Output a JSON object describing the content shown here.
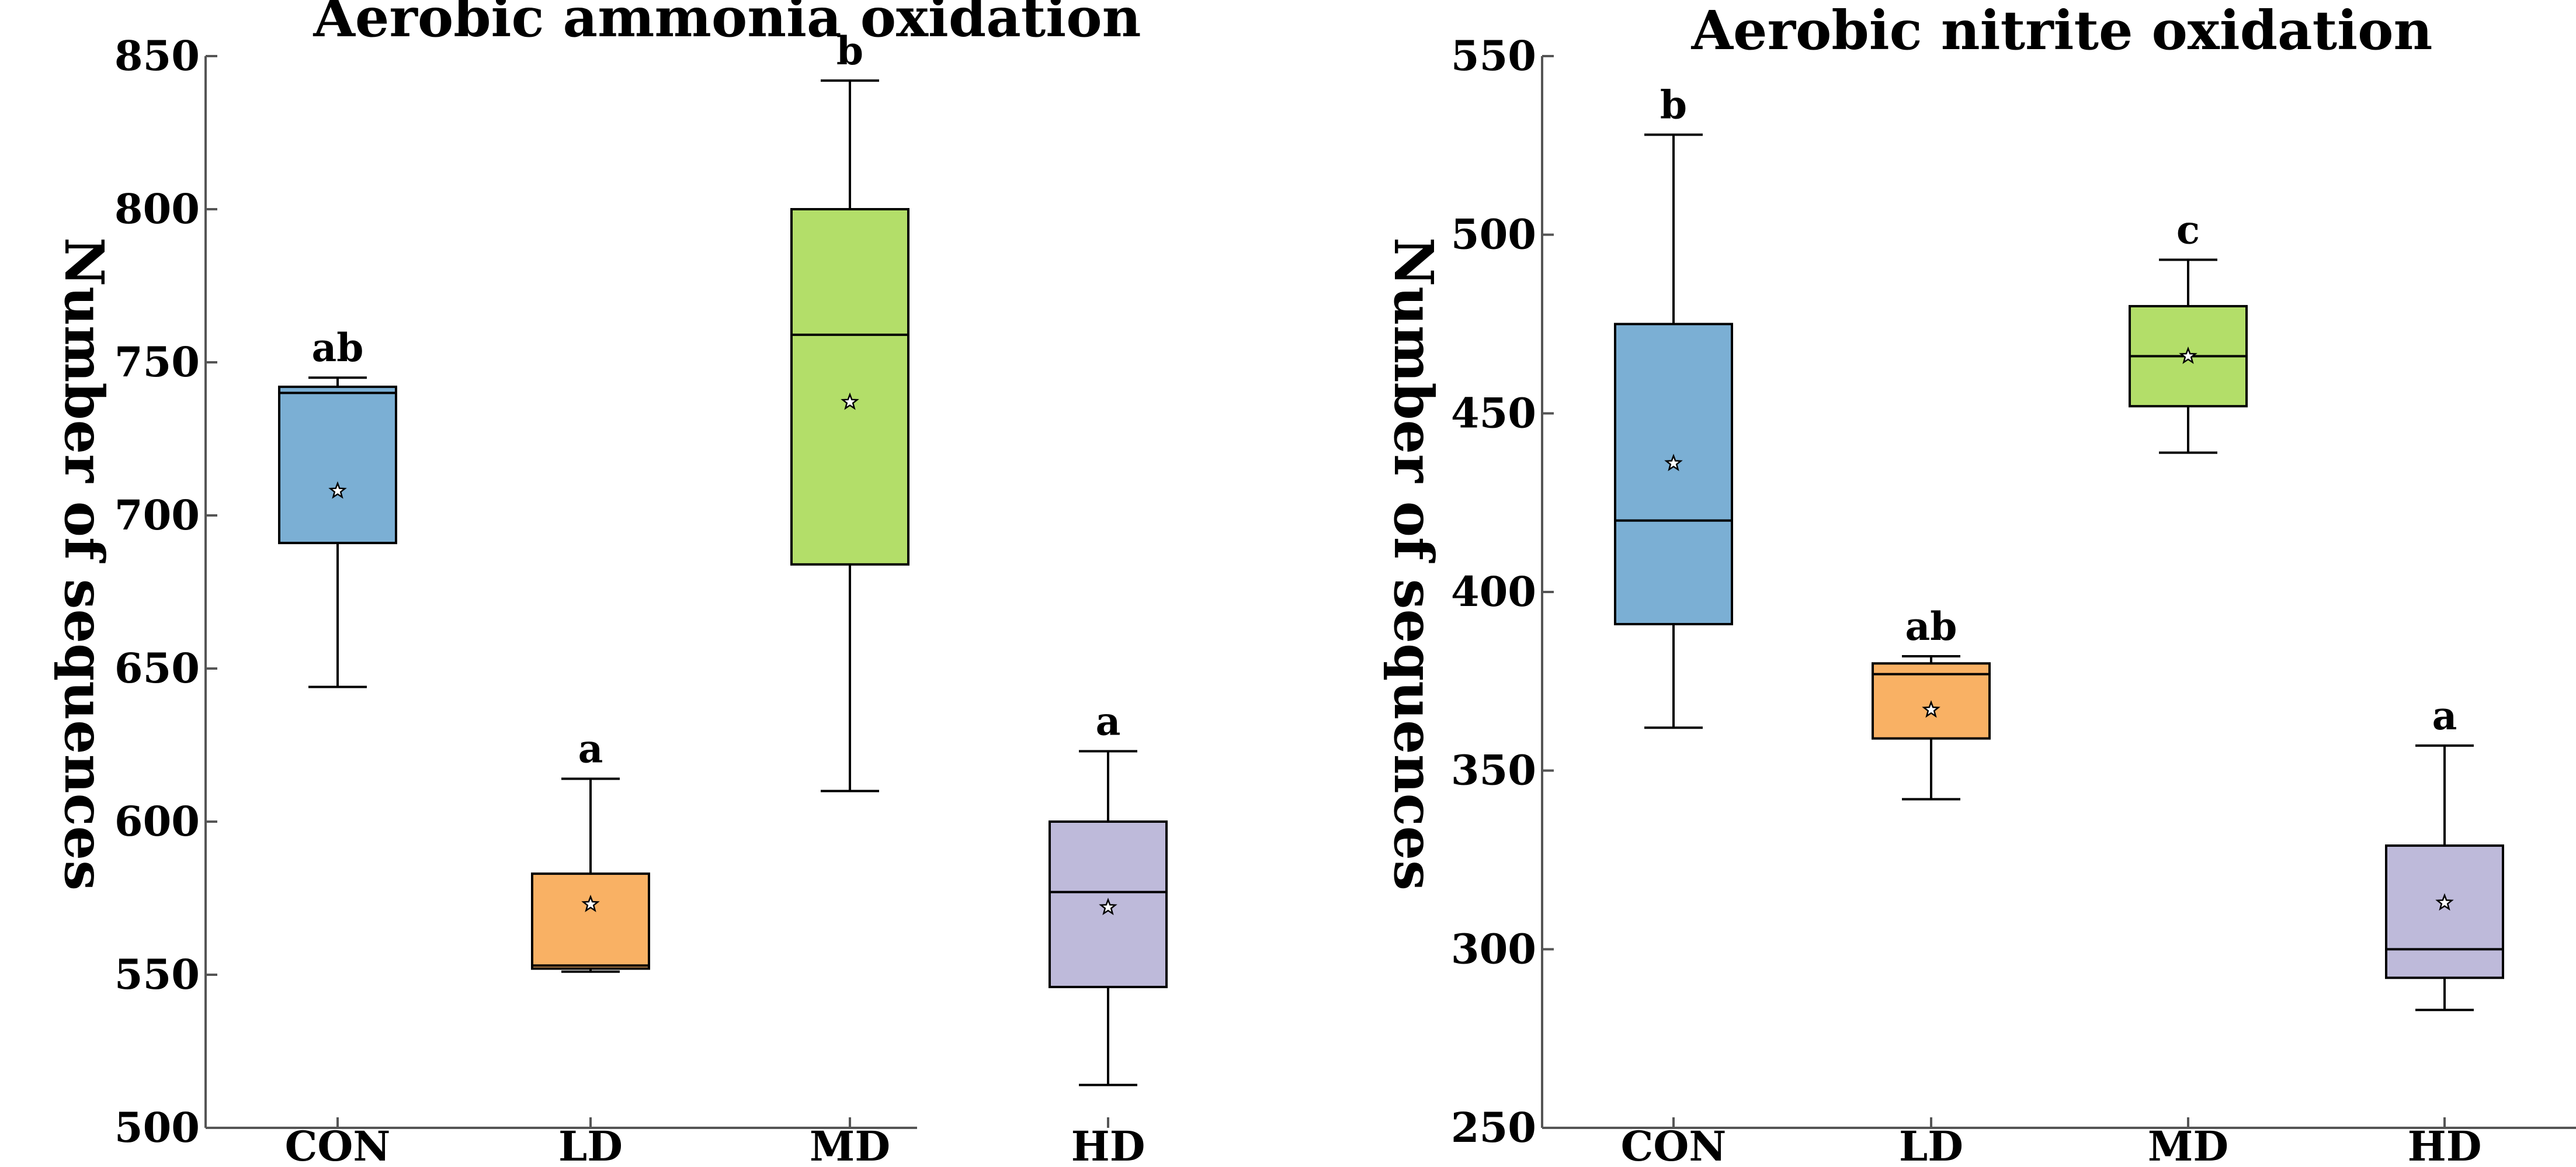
{
  "chart_data": [
    {
      "type": "box",
      "title": "Aerobic ammonia oxidation",
      "ylabel": "Number of sequences",
      "xlabel": "",
      "ylim": [
        500,
        850
      ],
      "yticks": [
        500,
        550,
        600,
        650,
        700,
        750,
        800,
        850
      ],
      "categories": [
        "CON",
        "LD",
        "MD",
        "HD"
      ],
      "colors": [
        "#7bafd4",
        "#f9b164",
        "#b3de69",
        "#bebada"
      ],
      "boxes": [
        {
          "category": "CON",
          "min": 644,
          "q1": 691,
          "median": 740,
          "q3": 742,
          "max": 745,
          "mean": 708,
          "label": "ab"
        },
        {
          "category": "LD",
          "min": 551,
          "q1": 552,
          "median": 553,
          "q3": 583,
          "max": 614,
          "mean": 573,
          "label": "a"
        },
        {
          "category": "MD",
          "min": 610,
          "q1": 684,
          "median": 759,
          "q3": 800,
          "max": 842,
          "mean": 737,
          "label": "b"
        },
        {
          "category": "HD",
          "min": 514,
          "q1": 546,
          "median": 577,
          "q3": 600,
          "max": 623,
          "mean": 572,
          "label": "a"
        }
      ]
    },
    {
      "type": "box",
      "title": "Aerobic nitrite oxidation",
      "ylabel": "Number of sequences",
      "xlabel": "",
      "ylim": [
        250,
        550
      ],
      "yticks": [
        250,
        300,
        350,
        400,
        450,
        500,
        550
      ],
      "categories": [
        "CON",
        "LD",
        "MD",
        "HD"
      ],
      "colors": [
        "#7bafd4",
        "#f9b164",
        "#b3de69",
        "#bebada"
      ],
      "boxes": [
        {
          "category": "CON",
          "min": 362,
          "q1": 391,
          "median": 420,
          "q3": 475,
          "max": 528,
          "mean": 436,
          "label": "b"
        },
        {
          "category": "LD",
          "min": 342,
          "q1": 359,
          "median": 377,
          "q3": 380,
          "max": 382,
          "mean": 367,
          "label": "ab"
        },
        {
          "category": "MD",
          "min": 439,
          "q1": 452,
          "median": 466,
          "q3": 480,
          "max": 493,
          "mean": 466,
          "label": "c"
        },
        {
          "category": "HD",
          "min": 283,
          "q1": 292,
          "median": 300,
          "q3": 329,
          "max": 357,
          "mean": 313,
          "label": "a"
        }
      ]
    }
  ]
}
